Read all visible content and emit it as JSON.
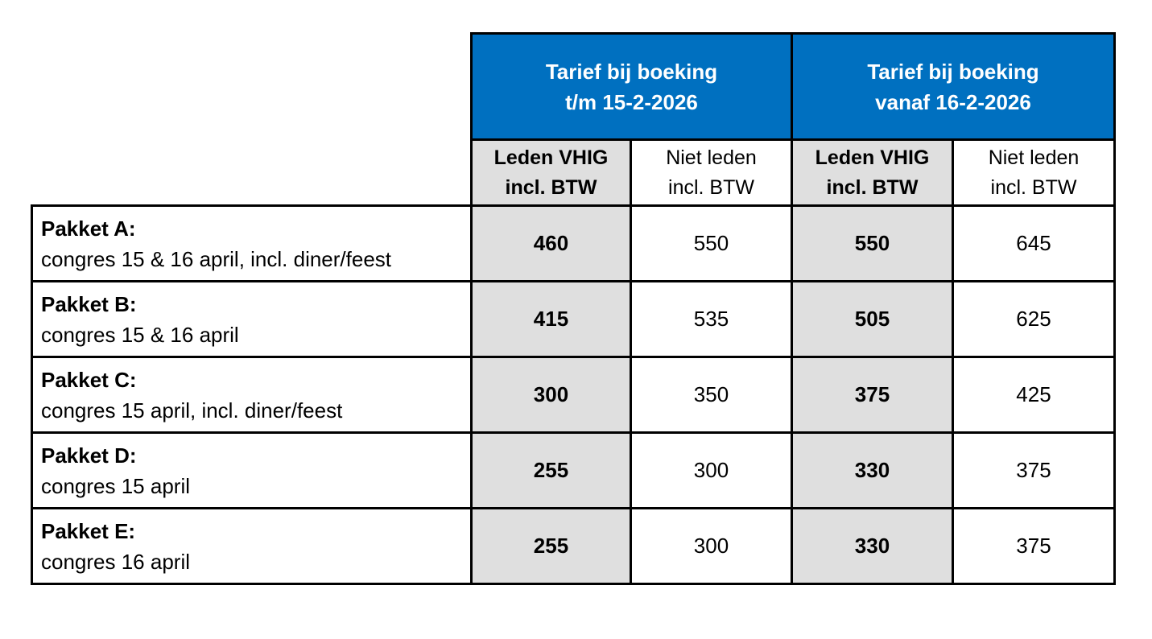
{
  "table": {
    "header_groups": [
      {
        "line1": "Tarief bij boeking",
        "line2": "t/m 15-2-2026"
      },
      {
        "line1": "Tarief bij boeking",
        "line2": "vanaf 16-2-2026"
      }
    ],
    "sub_headers": [
      {
        "line1": "Leden VHIG",
        "line2": "incl. BTW"
      },
      {
        "line1": "Niet leden",
        "line2": "incl. BTW"
      },
      {
        "line1": "Leden VHIG",
        "line2": "incl. BTW"
      },
      {
        "line1": "Niet leden",
        "line2": "incl. BTW"
      }
    ],
    "rows": [
      {
        "package": "Pakket A:",
        "description": "congres 15 & 16 april, incl. diner/feest",
        "prices": [
          "460",
          "550",
          "550",
          "645"
        ]
      },
      {
        "package": "Pakket B:",
        "description": "congres 15 & 16 april",
        "prices": [
          "415",
          "535",
          "505",
          "625"
        ]
      },
      {
        "package": "Pakket C:",
        "description": "congres 15 april, incl. diner/feest",
        "prices": [
          "300",
          "350",
          "375",
          "425"
        ]
      },
      {
        "package": "Pakket D:",
        "description": "congres 15 april",
        "prices": [
          "255",
          "300",
          "330",
          "375"
        ]
      },
      {
        "package": "Pakket E:",
        "description": "congres 16 april",
        "prices": [
          "255",
          "300",
          "330",
          "375"
        ]
      }
    ]
  },
  "colors": {
    "header_blue": "#0070C0",
    "member_gray": "#DFDFDF",
    "border": "#000000",
    "header_text": "#FFFFFF"
  }
}
